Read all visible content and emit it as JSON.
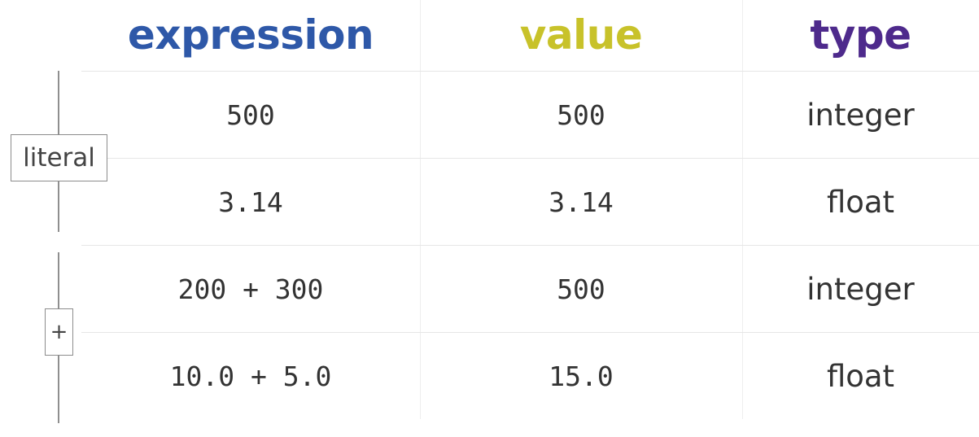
{
  "columns": {
    "expression": "expression",
    "value": "value",
    "type": "type"
  },
  "colors": {
    "expression_header": "#2e58a8",
    "value_header": "#c8c22a",
    "type_header": "#4e2a8c",
    "text": "#333333"
  },
  "groups": {
    "literal": "literal",
    "plus": "+"
  },
  "rows": [
    {
      "expression": "500",
      "value": "500",
      "type": "integer"
    },
    {
      "expression": "3.14",
      "value": "3.14",
      "type": "float"
    },
    {
      "expression": "200 + 300",
      "value": "500",
      "type": "integer"
    },
    {
      "expression": "10.0 + 5.0",
      "value": "15.0",
      "type": "float"
    }
  ]
}
